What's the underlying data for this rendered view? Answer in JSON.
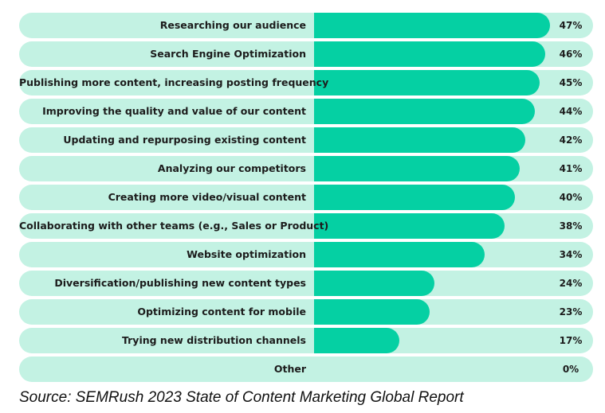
{
  "chart_data": {
    "type": "bar",
    "orientation": "horizontal",
    "categories": [
      "Researching our audience",
      "Search Engine Optimization",
      "Publishing more content, increasing posting frequency",
      "Improving the quality and value of our content",
      "Updating and repurposing existing content",
      "Analyzing our competitors",
      "Creating more video/visual content",
      "Collaborating with other teams (e.g., Sales or Product)",
      "Website optimization",
      "Diversification/publishing new content types",
      "Optimizing content for mobile",
      "Trying new distribution channels",
      "Other"
    ],
    "values": [
      47,
      46,
      45,
      44,
      42,
      41,
      40,
      38,
      34,
      24,
      23,
      17,
      0
    ],
    "value_labels": [
      "47%",
      "46%",
      "45%",
      "44%",
      "42%",
      "41%",
      "40%",
      "38%",
      "34%",
      "24%",
      "23%",
      "17%",
      "0%"
    ],
    "xlim": [
      0,
      47
    ],
    "grid": false,
    "colors": {
      "bar": "#05d0a3",
      "track": "#c3f2e3",
      "text": "#1c1c1c"
    }
  },
  "source": "Source: SEMRush 2023 State of Content Marketing Global Report"
}
